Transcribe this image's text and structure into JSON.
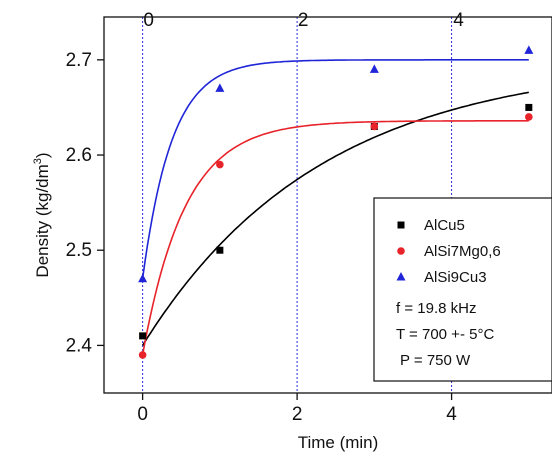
{
  "chart_data": {
    "type": "scatter",
    "xlabel": "Time (min)",
    "ylabel": "Density (kg/dm",
    "ylabel_sup": "3",
    "ylabel_end": ")",
    "xlim": [
      -0.5,
      5.3
    ],
    "ylim": [
      2.35,
      2.745
    ],
    "x_ticks": [
      0,
      2,
      4
    ],
    "x_tick_labels": [
      "0",
      "2",
      "4"
    ],
    "top_tick_labels": [
      "0",
      "2",
      "4"
    ],
    "y_ticks": [
      2.4,
      2.5,
      2.6,
      2.7
    ],
    "y_tick_labels": [
      "2.4",
      "2.5",
      "2.6",
      "2.7"
    ],
    "reference_lines_x": [
      0,
      2,
      4
    ],
    "grid": false,
    "legend_position": "bottom-right",
    "series": [
      {
        "name": "AlCu5",
        "marker": "square",
        "color": "#000000",
        "x": [
          0,
          1,
          3,
          5
        ],
        "y": [
          2.41,
          2.5,
          2.63,
          2.65
        ],
        "fit": {
          "y0": 2.4,
          "yinf": 2.7,
          "tau": 2.3
        }
      },
      {
        "name": "AlSi7Mg0,6",
        "marker": "circle",
        "color": "#e8232a",
        "x": [
          0,
          1,
          3,
          5
        ],
        "y": [
          2.39,
          2.59,
          2.63,
          2.64
        ],
        "fit": {
          "y0": 2.39,
          "yinf": 2.636,
          "tau": 0.55
        }
      },
      {
        "name": "AlSi9Cu3",
        "marker": "triangle",
        "color": "#2026d8",
        "x": [
          0,
          1,
          3,
          5
        ],
        "y": [
          2.47,
          2.67,
          2.69,
          2.71
        ],
        "fit": {
          "y0": 2.47,
          "yinf": 2.7,
          "tau": 0.38
        }
      }
    ],
    "annotations": [
      "f = 19.8 kHz",
      "T = 700 +- 5°C",
      "P = 750 W"
    ]
  }
}
